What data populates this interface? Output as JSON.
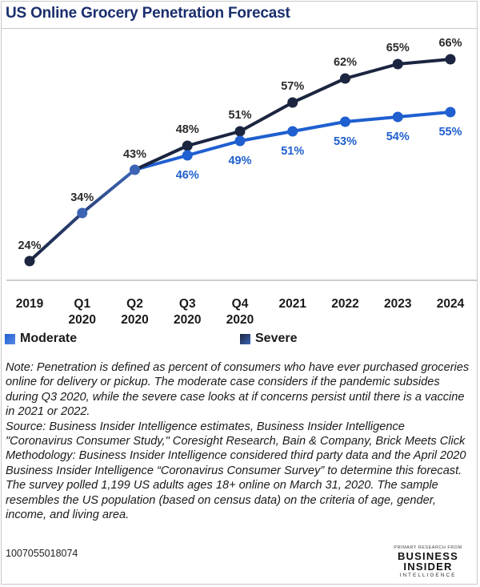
{
  "chart_data": {
    "type": "line",
    "title": "US Online Grocery Penetration Forecast",
    "categories": [
      "2019",
      "Q1 2020",
      "Q2 2020",
      "Q3 2020",
      "Q4 2020",
      "2021",
      "2022",
      "2023",
      "2024"
    ],
    "category_labels": [
      [
        "2019"
      ],
      [
        "Q1",
        "2020"
      ],
      [
        "Q2",
        "2020"
      ],
      [
        "Q3",
        "2020"
      ],
      [
        "Q4",
        "2020"
      ],
      [
        "2021"
      ],
      [
        "2022"
      ],
      [
        "2023"
      ],
      [
        "2024"
      ]
    ],
    "series": [
      {
        "name": "Moderate",
        "color": "#1f5fd0",
        "values": [
          24,
          34,
          43,
          46,
          49,
          51,
          53,
          54,
          55
        ],
        "labels": [
          "24%",
          "34%",
          "43%",
          "46%",
          "49%",
          "51%",
          "53%",
          "54%",
          "55%"
        ]
      },
      {
        "name": "Severe",
        "color": "#1b2540",
        "values": [
          24,
          34,
          43,
          48,
          51,
          57,
          62,
          65,
          66
        ],
        "labels": [
          "24%",
          "34%",
          "43%",
          "48%",
          "51%",
          "57%",
          "62%",
          "65%",
          "66%"
        ]
      }
    ],
    "shared_color": "#3c63b4",
    "ylim": [
      20,
      70
    ],
    "grid": false,
    "legend_position": "bottom"
  },
  "notes": {
    "note": "Note: Penetration is defined as percent of consumers who have ever purchased groceries online for delivery or pickup. The moderate case considers if the pandemic subsides during Q3 2020, while the severe case looks at if concerns persist until there is a vaccine in 2021 or 2022.",
    "source": "Source: Business Insider Intelligence estimates, Business Insider Intelligence \"Coronavirus Consumer Study,\" Coresight Research, Bain & Company, Brick Meets Click",
    "methodology": "Methodology: Business Insider Intelligence considered third party data and the April 2020 Business Insider Intelligence “Coronavirus Consumer Survey” to determine this forecast. The survey polled 1,199 US adults ages 18+ online on March 31, 2020. The sample resembles the US population (based on census data) on the criteria of age, gender, income, and living area."
  },
  "footer": {
    "chart_id": "1007055018074",
    "brand_top": "PRIMARY RESEARCH FROM",
    "brand_name": "BUSINESS INSIDER",
    "brand_sub": "INTELLIGENCE"
  }
}
